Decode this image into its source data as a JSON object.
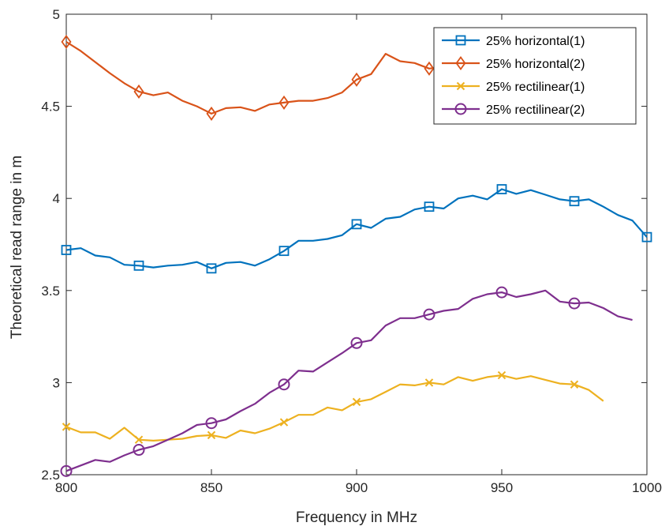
{
  "chart_data": {
    "type": "line",
    "title": "",
    "xlabel": "Frequency in MHz",
    "ylabel": "Theoretical read range in m",
    "xlim": [
      800,
      1000
    ],
    "ylim": [
      2.5,
      5
    ],
    "xticks": [
      800,
      850,
      900,
      950,
      1000
    ],
    "xtick_labels": [
      "800",
      "850",
      "900",
      "950",
      "1000"
    ],
    "yticks": [
      2.5,
      3,
      3.5,
      4,
      4.5,
      5
    ],
    "ytick_labels": [
      "2.5",
      "3",
      "3.5",
      "4",
      "4.5",
      "5"
    ],
    "grid": false,
    "box": true,
    "legend_position": "top-right",
    "series": [
      {
        "name": "25% horizontal(1)",
        "color": "#0072BD",
        "marker": "square",
        "marker_x": [
          800,
          825,
          850,
          875,
          900,
          925,
          950,
          975,
          1000
        ],
        "x": [
          800,
          805,
          810,
          815,
          820,
          825,
          830,
          835,
          840,
          845,
          850,
          855,
          860,
          865,
          870,
          875,
          880,
          885,
          890,
          895,
          900,
          905,
          910,
          915,
          920,
          925,
          930,
          935,
          940,
          945,
          950,
          955,
          960,
          965,
          970,
          975,
          980,
          985,
          990,
          995,
          1000
        ],
        "y": [
          3.72,
          3.73,
          3.69,
          3.68,
          3.64,
          3.635,
          3.625,
          3.635,
          3.64,
          3.655,
          3.62,
          3.65,
          3.655,
          3.635,
          3.67,
          3.715,
          3.77,
          3.77,
          3.78,
          3.8,
          3.86,
          3.84,
          3.89,
          3.9,
          3.94,
          3.955,
          3.945,
          4.0,
          4.015,
          3.995,
          4.05,
          4.025,
          4.045,
          4.02,
          3.995,
          3.985,
          3.995,
          3.955,
          3.91,
          3.88,
          3.79
        ]
      },
      {
        "name": "25% horizontal(2)",
        "color": "#D95319",
        "marker": "diamond",
        "marker_x": [
          800,
          825,
          850,
          875,
          900,
          925
        ],
        "x": [
          800,
          805,
          810,
          815,
          820,
          825,
          830,
          835,
          840,
          845,
          850,
          855,
          860,
          865,
          870,
          875,
          880,
          885,
          890,
          895,
          900,
          905,
          910,
          915,
          920,
          925,
          930
        ],
        "y": [
          4.85,
          4.8,
          4.74,
          4.68,
          4.625,
          4.58,
          4.56,
          4.575,
          4.53,
          4.5,
          4.46,
          4.49,
          4.495,
          4.475,
          4.51,
          4.52,
          4.53,
          4.53,
          4.545,
          4.575,
          4.645,
          4.675,
          4.785,
          4.745,
          4.735,
          4.705,
          4.715
        ]
      },
      {
        "name": "25% rectilinear(1)",
        "color": "#EDB120",
        "marker": "x",
        "marker_x": [
          800,
          825,
          850,
          875,
          900,
          925,
          950,
          975
        ],
        "x": [
          800,
          805,
          810,
          815,
          820,
          825,
          830,
          835,
          840,
          845,
          850,
          855,
          860,
          865,
          870,
          875,
          880,
          885,
          890,
          895,
          900,
          905,
          910,
          915,
          920,
          925,
          930,
          935,
          940,
          945,
          950,
          955,
          960,
          965,
          970,
          975,
          980,
          985
        ],
        "y": [
          2.76,
          2.73,
          2.73,
          2.695,
          2.755,
          2.69,
          2.685,
          2.69,
          2.695,
          2.71,
          2.715,
          2.7,
          2.74,
          2.725,
          2.75,
          2.785,
          2.825,
          2.825,
          2.865,
          2.85,
          2.895,
          2.91,
          2.95,
          2.99,
          2.985,
          3.0,
          2.99,
          3.03,
          3.01,
          3.03,
          3.04,
          3.02,
          3.035,
          3.015,
          2.995,
          2.99,
          2.96,
          2.9
        ]
      },
      {
        "name": "25% rectilinear(2)",
        "color": "#7E2F8E",
        "marker": "circle",
        "marker_x": [
          800,
          825,
          850,
          875,
          900,
          925,
          950,
          975
        ],
        "x": [
          800,
          805,
          810,
          815,
          820,
          825,
          830,
          835,
          840,
          845,
          850,
          855,
          860,
          865,
          870,
          875,
          880,
          885,
          890,
          895,
          900,
          905,
          910,
          915,
          920,
          925,
          930,
          935,
          940,
          945,
          950,
          955,
          960,
          965,
          970,
          975,
          980,
          985,
          990,
          995
        ],
        "y": [
          2.52,
          2.55,
          2.58,
          2.57,
          2.605,
          2.635,
          2.655,
          2.69,
          2.725,
          2.77,
          2.78,
          2.8,
          2.845,
          2.885,
          2.945,
          2.99,
          3.065,
          3.06,
          3.11,
          3.16,
          3.215,
          3.23,
          3.31,
          3.35,
          3.35,
          3.37,
          3.39,
          3.4,
          3.455,
          3.48,
          3.49,
          3.465,
          3.48,
          3.5,
          3.44,
          3.43,
          3.435,
          3.405,
          3.36,
          3.34
        ]
      }
    ]
  }
}
